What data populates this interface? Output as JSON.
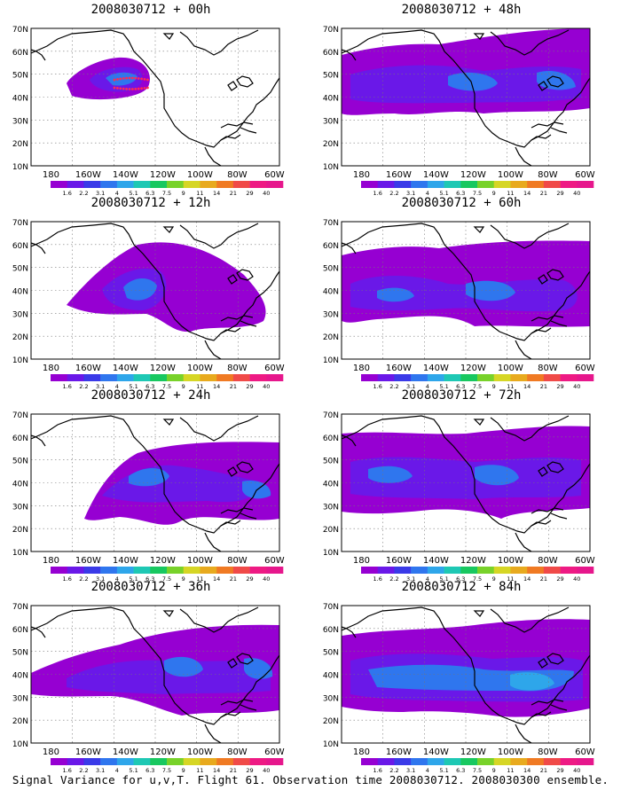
{
  "panels": [
    {
      "title": "2008030712 + 00h"
    },
    {
      "title": "2008030712 + 48h"
    },
    {
      "title": "2008030712 + 12h"
    },
    {
      "title": "2008030712 + 60h"
    },
    {
      "title": "2008030712 + 24h"
    },
    {
      "title": "2008030712 + 72h"
    },
    {
      "title": "2008030712 + 36h"
    },
    {
      "title": "2008030712 + 84h"
    }
  ],
  "axes": {
    "lat_labels": [
      "70N",
      "60N",
      "50N",
      "40N",
      "30N",
      "20N",
      "10N"
    ],
    "lon_labels": [
      "180",
      "160W",
      "140W",
      "120W",
      "100W",
      "80W",
      "60W"
    ]
  },
  "colorbar": {
    "labels": [
      "1.6",
      "2.2",
      "3.1",
      "4",
      "5.1",
      "6.3",
      "7.5",
      "9",
      "11",
      "14",
      "21",
      "29",
      "40"
    ],
    "colors": [
      "#9600d2",
      "#6a18e8",
      "#3a3ae8",
      "#2f76ee",
      "#2ea6ea",
      "#1ec8b4",
      "#18c860",
      "#78d22a",
      "#d6d625",
      "#e8aa1e",
      "#f07a23",
      "#f04a48",
      "#ee1a84",
      "#e6178c"
    ]
  },
  "caption": "Signal Variance for u,v,T. Flight 61. Observation time 2008030712. 2008030300 ensemble."
}
